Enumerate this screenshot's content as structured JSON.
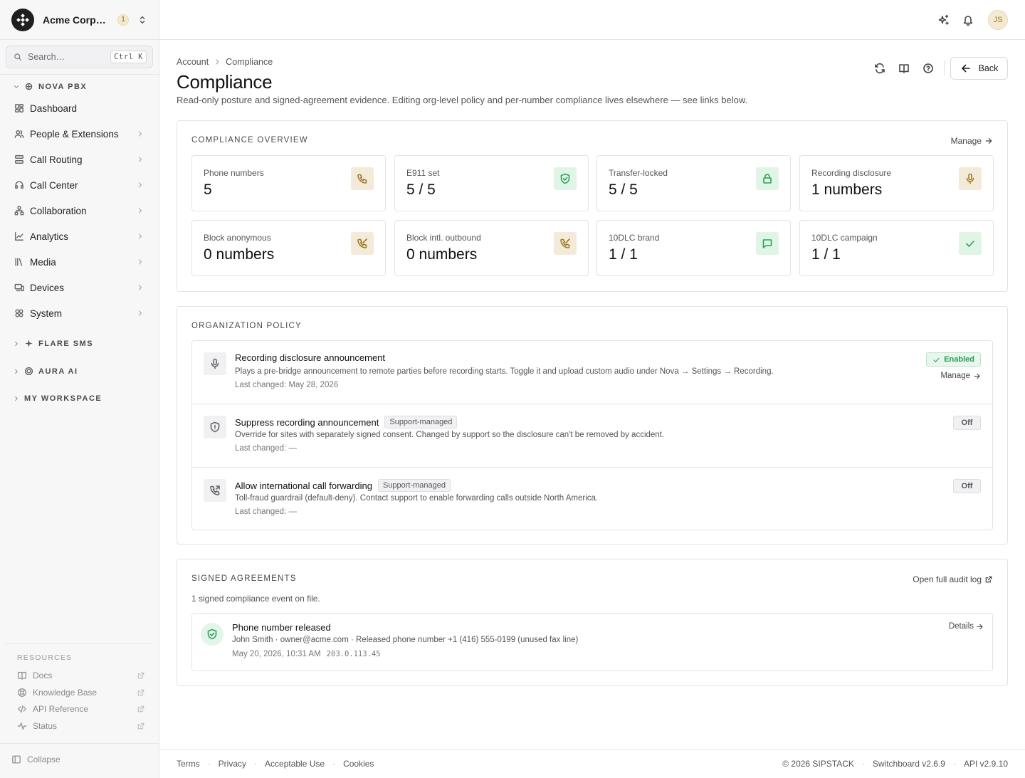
{
  "org": {
    "name": "Acme Corporation",
    "badge": "1"
  },
  "search": {
    "placeholder": "Search…",
    "shortcut": "Ctrl K"
  },
  "sidebar": {
    "nova_label": "NOVA PBX",
    "items": [
      {
        "label": "Dashboard",
        "icon": "dashboard-icon"
      },
      {
        "label": "People & Extensions",
        "icon": "users-icon"
      },
      {
        "label": "Call Routing",
        "icon": "routing-icon"
      },
      {
        "label": "Call Center",
        "icon": "headset-icon"
      },
      {
        "label": "Collaboration",
        "icon": "network-icon"
      },
      {
        "label": "Analytics",
        "icon": "chart-icon"
      },
      {
        "label": "Media",
        "icon": "library-icon"
      },
      {
        "label": "Devices",
        "icon": "devices-icon"
      },
      {
        "label": "System",
        "icon": "system-icon"
      }
    ],
    "flare_label": "FLARE SMS",
    "aura_label": "AURA AI",
    "workspace_label": "MY WORKSPACE",
    "resources_label": "RESOURCES",
    "resources": [
      {
        "label": "Docs",
        "icon": "book-icon"
      },
      {
        "label": "Knowledge Base",
        "icon": "lifebuoy-icon"
      },
      {
        "label": "API Reference",
        "icon": "code-icon"
      },
      {
        "label": "Status",
        "icon": "activity-icon"
      }
    ],
    "collapse_label": "Collapse"
  },
  "topbar": {
    "avatar": "JS"
  },
  "breadcrumb": {
    "parent": "Account",
    "current": "Compliance"
  },
  "page": {
    "title": "Compliance",
    "subtitle": "Read-only posture and signed-agreement evidence. Editing org-level policy and per-number compliance lives elsewhere — see links below.",
    "back_label": "Back"
  },
  "overview": {
    "title": "COMPLIANCE OVERVIEW",
    "manage_label": "Manage",
    "stats": [
      {
        "label": "Phone numbers",
        "value": "5",
        "icon": "phone-icon",
        "tone": "amber"
      },
      {
        "label": "E911 set",
        "value": "5 / 5",
        "icon": "shield-check-icon",
        "tone": "green"
      },
      {
        "label": "Transfer-locked",
        "value": "5 / 5",
        "icon": "lock-icon",
        "tone": "green"
      },
      {
        "label": "Recording disclosure",
        "value": "1 numbers",
        "icon": "mic-icon",
        "tone": "amber"
      },
      {
        "label": "Block anonymous",
        "value": "0 numbers",
        "icon": "phone-off-icon",
        "tone": "amber"
      },
      {
        "label": "Block intl. outbound",
        "value": "0 numbers",
        "icon": "phone-off-icon",
        "tone": "amber"
      },
      {
        "label": "10DLC brand",
        "value": "1 / 1",
        "icon": "message-icon",
        "tone": "green"
      },
      {
        "label": "10DLC campaign",
        "value": "1 / 1",
        "icon": "check-icon",
        "tone": "green"
      }
    ]
  },
  "policy": {
    "title": "ORGANIZATION POLICY",
    "rows": [
      {
        "title": "Recording disclosure announcement",
        "tag": "",
        "description": "Plays a pre-bridge announcement to remote parties before recording starts. Toggle it and upload custom audio under Nova → Settings → Recording.",
        "changed": "Last changed: May 28, 2026",
        "status": "Enabled",
        "link": "Manage"
      },
      {
        "title": "Suppress recording announcement",
        "tag": "Support-managed",
        "description": "Override for sites with separately signed consent. Changed by support so the disclosure can't be removed by accident.",
        "changed": "Last changed: —",
        "status": "Off",
        "link": ""
      },
      {
        "title": "Allow international call forwarding",
        "tag": "Support-managed",
        "description": "Toll-fraud guardrail (default-deny). Contact support to enable forwarding calls outside North America.",
        "changed": "Last changed: —",
        "status": "Off",
        "link": ""
      }
    ]
  },
  "agreements": {
    "title": "SIGNED AGREEMENTS",
    "audit_link": "Open full audit log",
    "summary": "1 signed compliance event on file.",
    "event": {
      "title": "Phone number released",
      "meta": "John Smith · owner@acme.com · Released phone number +1 (416) 555-0199 (unused fax line)",
      "time": "May 20, 2026, 10:31 AM",
      "ip": "203.0.113.45",
      "details": "Details"
    }
  },
  "footer": {
    "links": [
      "Terms",
      "Privacy",
      "Acceptable Use",
      "Cookies"
    ],
    "copyright": "© 2026 SIPSTACK",
    "version": "Switchboard v2.6.9",
    "api": "API v2.9.10"
  }
}
